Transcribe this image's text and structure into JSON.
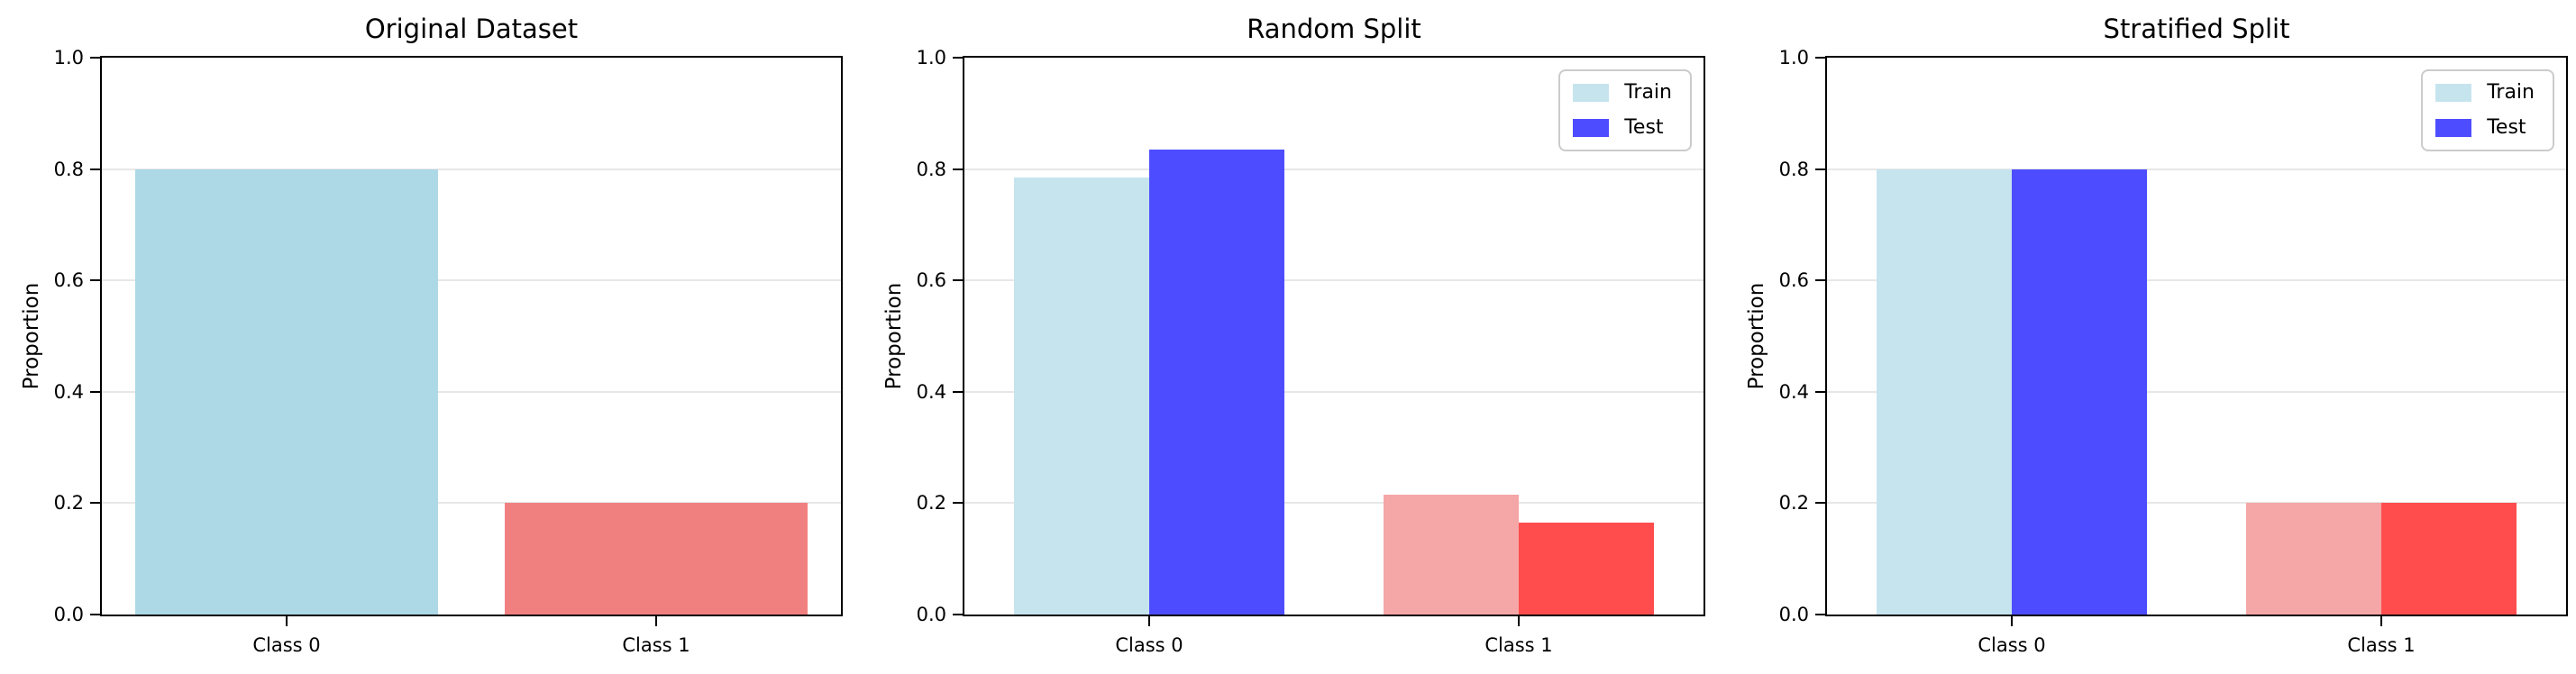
{
  "figure": {
    "background_color": "#ffffff",
    "text_color": "#000000",
    "grid_color": "#e7e7e7",
    "spine_color": "#000000"
  },
  "chart_data": [
    {
      "type": "bar",
      "title": "Original Dataset",
      "ylabel": "Proportion",
      "categories": [
        "Class 0",
        "Class 1"
      ],
      "values": [
        0.8,
        0.2
      ],
      "colors": [
        "#ADD8E6",
        "#F08080"
      ],
      "ylim": [
        0,
        1
      ],
      "yticks": [
        0,
        0.2,
        0.4,
        0.6,
        0.8,
        1
      ],
      "ytick_labels": [
        "0.0",
        "0.2",
        "0.4",
        "0.6",
        "0.8",
        "1.0"
      ],
      "grid": true,
      "legend": "none"
    },
    {
      "type": "bar",
      "title": "Random Split",
      "ylabel": "Proportion",
      "categories": [
        "Class 0",
        "Class 1"
      ],
      "series": [
        {
          "name": "Train",
          "values": [
            0.785,
            0.215
          ],
          "colors": [
            "#C6E4EE",
            "#F5A6A6"
          ],
          "swatch_color": "#C6E4EE"
        },
        {
          "name": "Test",
          "values": [
            0.835,
            0.165
          ],
          "colors": [
            "#4D4DFF",
            "#FF4D4D"
          ],
          "swatch_color": "#4D4DFF"
        }
      ],
      "ylim": [
        0,
        1
      ],
      "yticks": [
        0,
        0.2,
        0.4,
        0.6,
        0.8,
        1
      ],
      "ytick_labels": [
        "0.0",
        "0.2",
        "0.4",
        "0.6",
        "0.8",
        "1.0"
      ],
      "grid": true,
      "legend": "upper right"
    },
    {
      "type": "bar",
      "title": "Stratified Split",
      "ylabel": "Proportion",
      "categories": [
        "Class 0",
        "Class 1"
      ],
      "series": [
        {
          "name": "Train",
          "values": [
            0.8,
            0.2
          ],
          "colors": [
            "#C6E4EE",
            "#F5A6A6"
          ],
          "swatch_color": "#C6E4EE"
        },
        {
          "name": "Test",
          "values": [
            0.8,
            0.2
          ],
          "colors": [
            "#4D4DFF",
            "#FF4D4D"
          ],
          "swatch_color": "#4D4DFF"
        }
      ],
      "ylim": [
        0,
        1
      ],
      "yticks": [
        0,
        0.2,
        0.4,
        0.6,
        0.8,
        1
      ],
      "ytick_labels": [
        "0.0",
        "0.2",
        "0.4",
        "0.6",
        "0.8",
        "1.0"
      ],
      "grid": true,
      "legend": "upper right"
    }
  ]
}
